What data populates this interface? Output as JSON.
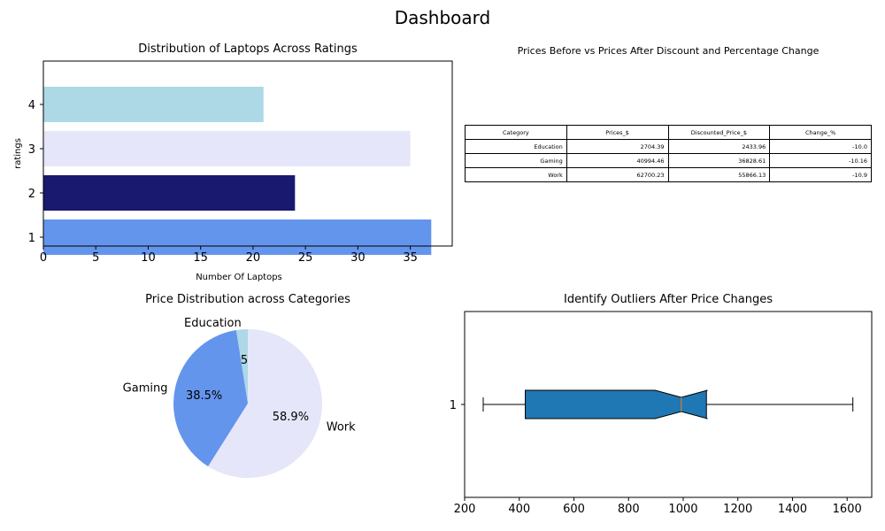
{
  "page": {
    "title": "Dashboard"
  },
  "chart_data": [
    {
      "type": "bar",
      "orientation": "horizontal",
      "title": "Distribution of Laptops Across Ratings",
      "xlabel": "Number Of Laptops",
      "ylabel": "ratings",
      "categories": [
        "1",
        "2",
        "3",
        "4"
      ],
      "values": [
        37,
        24,
        35,
        21
      ],
      "colors": [
        "#6495ed",
        "#191970",
        "#e6e6fa",
        "#add8e6"
      ],
      "xlim": [
        0,
        39
      ],
      "xticks": [
        0,
        5,
        10,
        15,
        20,
        25,
        30,
        35
      ],
      "grid": false
    },
    {
      "type": "table",
      "title": "Prices Before vs Prices After Discount and Percentage Change",
      "columns": [
        "Category",
        "Prices_$",
        "Discounted_Price_$",
        "Change_%"
      ],
      "rows": [
        [
          "Education",
          "2704.39",
          "2433.96",
          "-10.0"
        ],
        [
          "Gaming",
          "40994.46",
          "36828.61",
          "-10.16"
        ],
        [
          "Work",
          "62700.23",
          "55866.13",
          "-10.9"
        ]
      ]
    },
    {
      "type": "pie",
      "title": "Price Distribution across Categories",
      "labels": [
        "Education",
        "Gaming",
        "Work"
      ],
      "values": [
        2.5,
        38.5,
        58.9
      ],
      "value_labels": [
        "2.5%",
        "38.5%",
        "58.9%"
      ],
      "colors": [
        "#add8e6",
        "#6495ed",
        "#e6e6fa"
      ]
    },
    {
      "type": "box",
      "orientation": "horizontal",
      "notched": true,
      "title": "Identify Outliers After Price Changes",
      "yticks": [
        "1"
      ],
      "xlim": [
        200,
        1690
      ],
      "xticks": [
        200,
        400,
        600,
        800,
        1000,
        1200,
        1400,
        1600
      ],
      "whisker_low": 268,
      "q1": 422,
      "median": 993,
      "q3": 1085,
      "whisker_high": 1621,
      "notch_low": 897,
      "notch_high": 1089,
      "box_color": "#1f77b4",
      "median_color": "#ff7f0e",
      "grid": false
    }
  ]
}
